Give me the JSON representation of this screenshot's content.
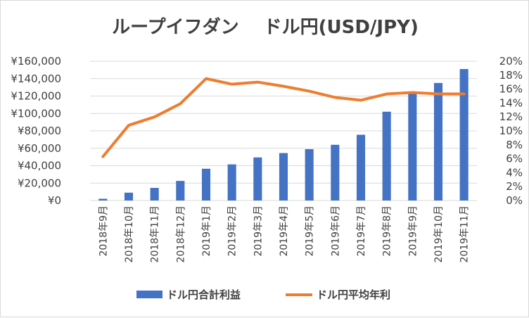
{
  "chart_data": {
    "type": "bar",
    "title": "ループイフダン　 ドル円(USD/JPY)",
    "categories": [
      "2018年9月",
      "2018年10月",
      "2018年11月",
      "2018年12月",
      "2019年1月",
      "2019年2月",
      "2019年3月",
      "2019年4月",
      "2019年5月",
      "2019年6月",
      "2019年7月",
      "2019年8月",
      "2019年9月",
      "2019年10月",
      "2019年11月"
    ],
    "series": [
      {
        "name": "ドル円合計利益",
        "type": "bar",
        "axis": "left",
        "color": "#4472c4",
        "values": [
          2000,
          9000,
          14500,
          22500,
          36500,
          41500,
          49500,
          54500,
          59000,
          64000,
          75500,
          102000,
          123000,
          135000,
          151000
        ]
      },
      {
        "name": "ドル円平均年利",
        "type": "line",
        "axis": "right",
        "color": "#ed7d31",
        "values": [
          0.063,
          0.108,
          0.12,
          0.139,
          0.175,
          0.167,
          0.17,
          0.164,
          0.157,
          0.148,
          0.144,
          0.153,
          0.155,
          0.153,
          0.153
        ]
      }
    ],
    "y_left": {
      "min": 0,
      "max": 160000,
      "tick_labels": [
        "¥0",
        "¥20,000",
        "¥40,000",
        "¥60,000",
        "¥80,000",
        "¥100,000",
        "¥120,000",
        "¥140,000",
        "¥160,000"
      ]
    },
    "y_right": {
      "min": 0,
      "max": 0.2,
      "tick_labels": [
        "0%",
        "2%",
        "4%",
        "6%",
        "8%",
        "10%",
        "12%",
        "14%",
        "16%",
        "18%",
        "20%"
      ]
    },
    "grid": true,
    "legend_position": "bottom"
  }
}
